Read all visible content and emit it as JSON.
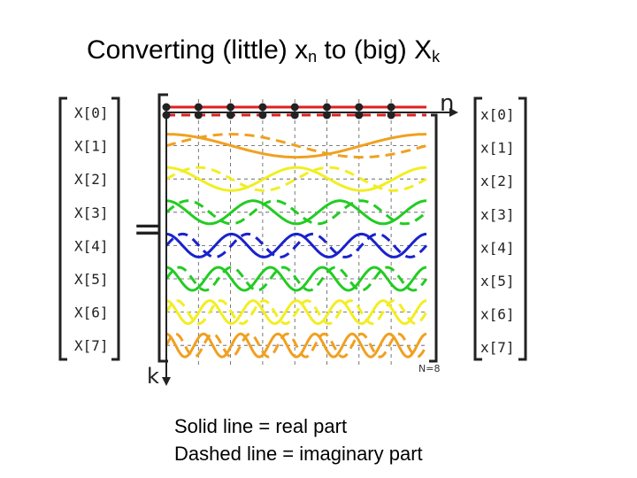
{
  "title": {
    "prefix": "Converting (little) x",
    "sub1": "n",
    "middle": " to (big) X",
    "sub2": "k"
  },
  "output_vector": [
    "X[0]",
    "X[1]",
    "X[2]",
    "X[3]",
    "X[4]",
    "X[5]",
    "X[6]",
    "X[7]"
  ],
  "input_vector": [
    "x[0]",
    "x[1]",
    "x[2]",
    "x[3]",
    "x[4]",
    "x[5]",
    "x[6]",
    "x[7]"
  ],
  "equals_sign": "=",
  "axis_n_label": "n",
  "axis_k_label": "k",
  "n_note": "N=8",
  "rows": [
    {
      "k": 0,
      "color": "#dd2020"
    },
    {
      "k": 1,
      "color": "#f0a020"
    },
    {
      "k": 2,
      "color": "#f2ee22"
    },
    {
      "k": 3,
      "color": "#22cc22"
    },
    {
      "k": 4,
      "color": "#1a22cc"
    },
    {
      "k": 5,
      "color": "#22cc22"
    },
    {
      "k": 6,
      "color": "#f2ee22"
    },
    {
      "k": 7,
      "color": "#f0a020"
    }
  ],
  "caption": {
    "line1": "Solid line = real part",
    "line2": "Dashed line = imaginary part"
  }
}
